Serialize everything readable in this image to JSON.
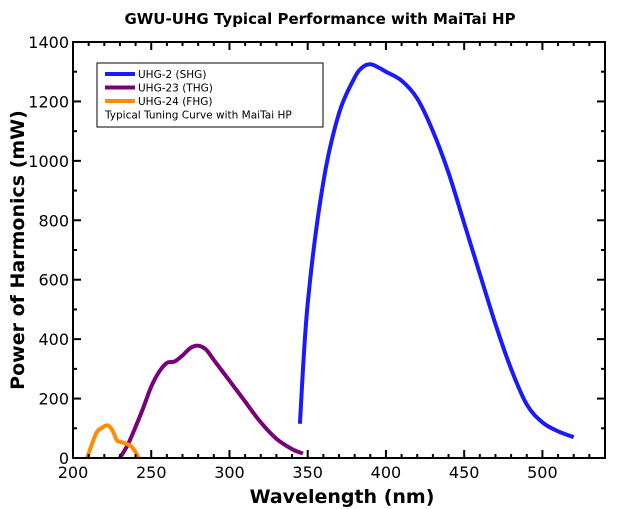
{
  "chart_data": {
    "type": "line",
    "title": "GWU-UHG Typical Performance with MaiTai HP",
    "xlabel": "Wavelength (nm)",
    "ylabel": "Power of Harmonics (mW)",
    "xlim": [
      200,
      540
    ],
    "ylim": [
      0,
      1400
    ],
    "xticks": [
      200,
      250,
      300,
      350,
      400,
      450,
      500
    ],
    "yticks": [
      0,
      200,
      400,
      600,
      800,
      1000,
      1200,
      1400
    ],
    "grid": false,
    "legend_position": "top-left",
    "legend_note": "Typical Tuning Curve with MaiTai HP",
    "series": [
      {
        "name": "UHG-2 (SHG)",
        "color": "#1a1aff",
        "x": [
          345,
          350,
          360,
          370,
          380,
          385,
          390,
          395,
          400,
          410,
          420,
          430,
          440,
          450,
          460,
          470,
          480,
          490,
          500,
          510,
          520
        ],
        "y": [
          115,
          520,
          930,
          1160,
          1280,
          1315,
          1325,
          1315,
          1300,
          1270,
          1210,
          1100,
          960,
          790,
          620,
          450,
          300,
          180,
          120,
          90,
          70
        ]
      },
      {
        "name": "UHG-23 (THG)",
        "color": "#7a007a",
        "x": [
          230,
          235,
          240,
          245,
          250,
          255,
          260,
          265,
          270,
          275,
          280,
          285,
          290,
          300,
          310,
          320,
          330,
          340,
          347
        ],
        "y": [
          0,
          45,
          105,
          170,
          240,
          290,
          320,
          325,
          345,
          370,
          378,
          365,
          330,
          260,
          190,
          120,
          65,
          30,
          15
        ]
      },
      {
        "name": "UHG-24 (FHG)",
        "color": "#ff8c00",
        "x": [
          209,
          212,
          215,
          218,
          222,
          225,
          228,
          230,
          233,
          237,
          240,
          242
        ],
        "y": [
          0,
          45,
          85,
          100,
          110,
          95,
          60,
          55,
          50,
          40,
          20,
          0
        ]
      }
    ]
  }
}
